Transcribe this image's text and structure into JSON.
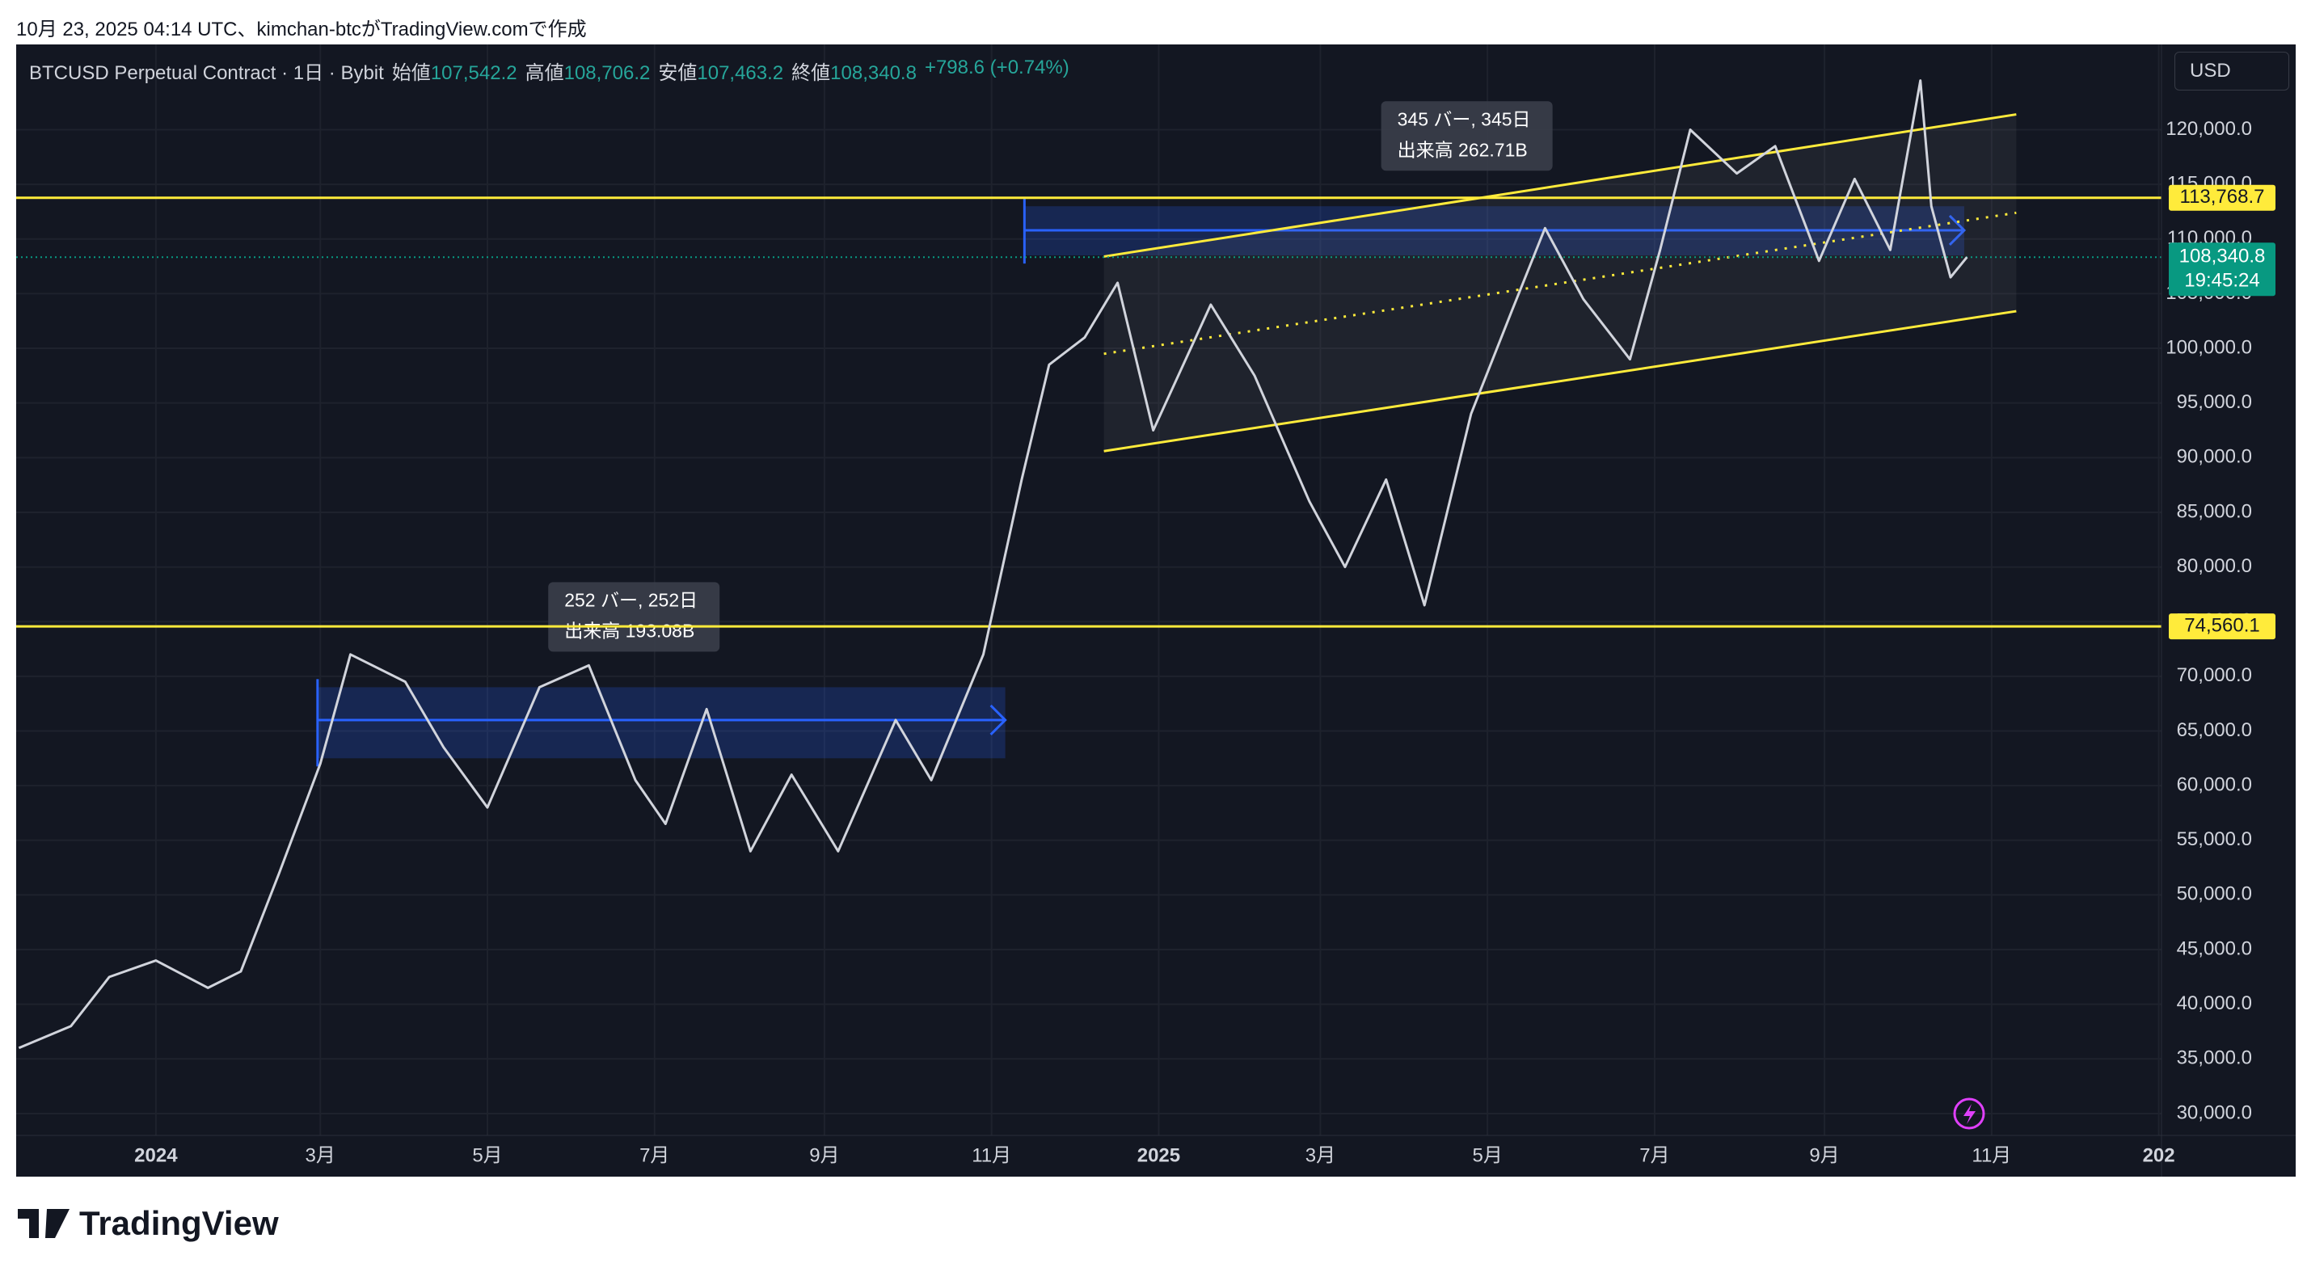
{
  "caption": "10月 23, 2025 04:14 UTC、kimchan-btcがTradingView.comで作成",
  "legend": {
    "symbol": "BTCUSD Perpetual Contract · 1日 · Bybit",
    "items": [
      {
        "label": "始値",
        "value": "107,542.2"
      },
      {
        "label": "高値",
        "value": "108,706.2"
      },
      {
        "label": "安値",
        "value": "107,463.2"
      },
      {
        "label": "終値",
        "value": "108,340.8"
      }
    ],
    "change": "+798.6 (+0.74%)"
  },
  "currency": "USD",
  "brand": "TradingView",
  "chart_data": {
    "type": "line",
    "color": "#d1d4dc",
    "x": [
      "2023-11-12",
      "2023-12-01",
      "2023-12-15",
      "2024-01-01",
      "2024-01-20",
      "2024-02-01",
      "2024-02-15",
      "2024-03-01",
      "2024-03-12",
      "2024-04-01",
      "2024-04-15",
      "2024-05-01",
      "2024-05-20",
      "2024-06-07",
      "2024-06-24",
      "2024-07-05",
      "2024-07-20",
      "2024-08-05",
      "2024-08-20",
      "2024-09-06",
      "2024-09-27",
      "2024-10-10",
      "2024-10-29",
      "2024-11-12",
      "2024-11-22",
      "2024-12-05",
      "2024-12-17",
      "2024-12-30",
      "2025-01-20",
      "2025-02-05",
      "2025-02-25",
      "2025-03-10",
      "2025-03-25",
      "2025-04-08",
      "2025-04-25",
      "2025-05-10",
      "2025-05-22",
      "2025-06-05",
      "2025-06-22",
      "2025-07-03",
      "2025-07-14",
      "2025-07-31",
      "2025-08-14",
      "2025-08-30",
      "2025-09-12",
      "2025-09-25",
      "2025-10-06",
      "2025-10-10",
      "2025-10-17",
      "2025-10-23"
    ],
    "values": [
      36000,
      38000,
      42500,
      44000,
      41500,
      43000,
      52000,
      62000,
      72000,
      69500,
      63500,
      58000,
      69000,
      71000,
      60500,
      56500,
      67000,
      54000,
      61000,
      54000,
      66000,
      60500,
      72000,
      88000,
      98500,
      101000,
      106000,
      92500,
      104000,
      97500,
      86000,
      80000,
      88000,
      76500,
      94000,
      103500,
      111000,
      104500,
      99000,
      109000,
      120000,
      116000,
      118500,
      108000,
      115500,
      109000,
      124500,
      113000,
      106500,
      108340.8
    ],
    "xlim": [
      "2023-11-11",
      "2026-01-02"
    ],
    "xticks": [
      {
        "value": "2024-01-01",
        "label": "2024"
      },
      {
        "value": "2024-03-01",
        "label": "3月"
      },
      {
        "value": "2024-05-01",
        "label": "5月"
      },
      {
        "value": "2024-07-01",
        "label": "7月"
      },
      {
        "value": "2024-09-01",
        "label": "9月"
      },
      {
        "value": "2024-11-01",
        "label": "11月"
      },
      {
        "value": "2025-01-01",
        "label": "2025"
      },
      {
        "value": "2025-03-01",
        "label": "3月"
      },
      {
        "value": "2025-05-01",
        "label": "5月"
      },
      {
        "value": "2025-07-01",
        "label": "7月"
      },
      {
        "value": "2025-09-01",
        "label": "9月"
      },
      {
        "value": "2025-11-01",
        "label": "11月"
      },
      {
        "value": "2026-01-01",
        "label": "202"
      }
    ],
    "ylim": [
      28000,
      127800
    ],
    "yticks": [
      {
        "value": 30000,
        "label": "30,000.0"
      },
      {
        "value": 35000,
        "label": "35,000.0"
      },
      {
        "value": 40000,
        "label": "40,000.0"
      },
      {
        "value": 45000,
        "label": "45,000.0"
      },
      {
        "value": 50000,
        "label": "50,000.0"
      },
      {
        "value": 55000,
        "label": "55,000.0"
      },
      {
        "value": 60000,
        "label": "60,000.0"
      },
      {
        "value": 65000,
        "label": "65,000.0"
      },
      {
        "value": 70000,
        "label": "70,000.0"
      },
      {
        "value": 75000,
        "label": "75,000.0"
      },
      {
        "value": 80000,
        "label": "80,000.0"
      },
      {
        "value": 85000,
        "label": "85,000.0"
      },
      {
        "value": 90000,
        "label": "90,000.0"
      },
      {
        "value": 95000,
        "label": "95,000.0"
      },
      {
        "value": 100000,
        "label": "100,000.0"
      },
      {
        "value": 105000,
        "label": "105,000.0"
      },
      {
        "value": 110000,
        "label": "110,000.0"
      },
      {
        "value": 115000,
        "label": "115,000.0"
      },
      {
        "value": 120000,
        "label": "120,000.0"
      }
    ],
    "grid": true,
    "levels": [
      {
        "value": 113768.7,
        "label": "113,768.7"
      },
      {
        "value": 74560.1,
        "label": "74,560.1"
      }
    ],
    "level_color": "#ffeb3b",
    "last": {
      "value": 108340.8,
      "label": "108,340.8",
      "countdown": "19:45:24",
      "color": "#089981"
    },
    "ranges": [
      {
        "start": "2024-02-29",
        "end": "2024-11-06",
        "low": 62500,
        "high": 69000,
        "arrow": 66000,
        "bars_label": "252 バー, 252日",
        "volume_label": "出来高 193.08B"
      },
      {
        "start": "2024-11-13",
        "end": "2025-10-22",
        "low": 108500,
        "high": 113000,
        "arrow": 110800,
        "bars_label": "345 バー, 345日",
        "volume_label": "出来高 262.71B"
      }
    ],
    "range_color": "#2962ff",
    "channel": {
      "start": "2024-12-12",
      "end": "2025-11-10",
      "upper": [
        108400,
        121400
      ],
      "lower": [
        90600,
        103400
      ]
    }
  }
}
